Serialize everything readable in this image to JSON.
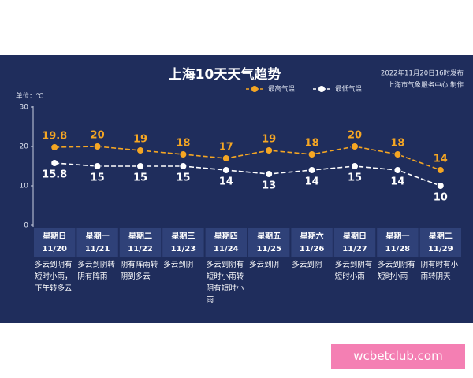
{
  "chart_data": {
    "type": "line",
    "title": "上海10天天气趋势",
    "publish_note": [
      "2022年11月20日16时发布",
      "上海市气象服务中心 制作"
    ],
    "unit_label": "单位：℃",
    "categories": [
      "11/20",
      "11/21",
      "11/22",
      "11/23",
      "11/24",
      "11/25",
      "11/26",
      "11/27",
      "11/28",
      "11/29"
    ],
    "weekdays": [
      "星期日",
      "星期一",
      "星期二",
      "星期三",
      "星期四",
      "星期五",
      "星期六",
      "星期日",
      "星期一",
      "星期二"
    ],
    "descriptions": [
      "多云到阴有短时小雨，下午转多云",
      "多云到阴转阴有阵雨",
      "阴有阵雨转阴到多云",
      "多云到阴",
      "多云到阴有短时小雨转阴有短时小雨",
      "多云到阴",
      "多云到阴",
      "多云到阴有短时小雨",
      "多云到阴有短时小雨",
      "阴有时有小雨转阴天"
    ],
    "series": [
      {
        "name": "最高气温",
        "color": "#f5a623",
        "values": [
          19.8,
          20,
          19,
          18,
          17,
          19,
          18,
          20,
          18,
          14
        ]
      },
      {
        "name": "最低气温",
        "color": "#ffffff",
        "values": [
          15.8,
          15,
          15,
          15,
          14,
          13,
          14,
          15,
          14,
          10
        ]
      }
    ],
    "ylim": [
      0,
      30
    ],
    "yticks": [
      0,
      10,
      20,
      30
    ],
    "grid": false,
    "legend": "top"
  },
  "watermark": "wcbetclub.com"
}
